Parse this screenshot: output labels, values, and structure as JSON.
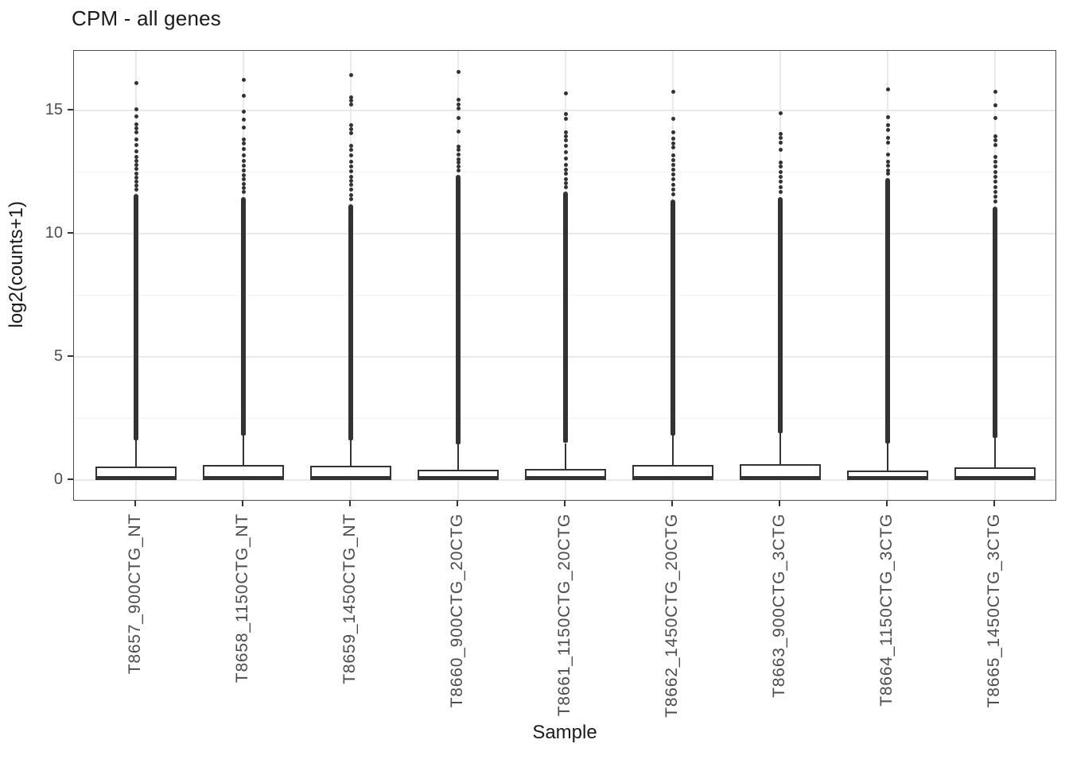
{
  "chart_data": {
    "type": "boxplot",
    "title": "CPM - all genes",
    "xlabel": "Sample",
    "ylabel": "log2(counts+1)",
    "ylim": [
      -0.87,
      17.4
    ],
    "y_major_ticks": [
      0,
      5,
      10,
      15
    ],
    "y_minor_ticks": [
      2.5,
      7.5,
      12.5
    ],
    "grid": "on",
    "legend": "none",
    "colors": {
      "box_border": "#333333",
      "median": "#333333",
      "outlier_dot": "#333333",
      "grid_major": "#e9e9e9",
      "grid_minor": "#f3f3f3",
      "panel_border": "#4d4d4d",
      "tick_label": "#4d4d4d",
      "axis_title": "#1a1a1a",
      "title": "#1a1a1a",
      "background": "#ffffff"
    },
    "samples": [
      {
        "name": "T8657_900CTG_NT",
        "q1": 0,
        "median": 0.07,
        "q3": 0.55,
        "whisker_low": 0,
        "whisker_high": 1.6,
        "dense_outliers_to": 11.6,
        "outlier_dots": [
          11.78,
          11.95,
          12.1,
          12.28,
          12.45,
          12.62,
          12.8,
          12.95,
          13.12,
          13.35,
          13.6,
          13.82,
          14.1,
          14.28,
          14.45,
          14.75,
          15.05,
          16.1
        ]
      },
      {
        "name": "T8658_1150CTG_NT",
        "q1": 0,
        "median": 0.07,
        "q3": 0.6,
        "whisker_low": 0,
        "whisker_high": 1.8,
        "dense_outliers_to": 11.5,
        "outlier_dots": [
          11.68,
          11.85,
          12.02,
          12.2,
          12.38,
          12.55,
          12.75,
          12.95,
          13.18,
          13.42,
          13.65,
          13.82,
          14.3,
          14.62,
          14.95,
          15.6,
          16.25
        ]
      },
      {
        "name": "T8659_1450CTG_NT",
        "q1": 0,
        "median": 0.07,
        "q3": 0.58,
        "whisker_low": 0,
        "whisker_high": 1.6,
        "dense_outliers_to": 11.2,
        "outlier_dots": [
          11.4,
          11.58,
          11.78,
          11.98,
          12.15,
          12.32,
          12.52,
          12.72,
          12.92,
          13.18,
          13.4,
          13.55,
          14.08,
          14.25,
          14.4,
          15.25,
          15.4,
          15.52,
          16.45
        ]
      },
      {
        "name": "T8660_900CTG_20CTG",
        "q1": 0,
        "median": 0.07,
        "q3": 0.42,
        "whisker_low": 0,
        "whisker_high": 1.45,
        "dense_outliers_to": 12.4,
        "outlier_dots": [
          12.55,
          12.72,
          12.88,
          13.02,
          13.2,
          13.4,
          13.52,
          14.15,
          14.7,
          15.08,
          15.25,
          15.42,
          16.55
        ]
      },
      {
        "name": "T8661_1150CTG_20CTG",
        "q1": 0,
        "median": 0.07,
        "q3": 0.45,
        "whisker_low": 0,
        "whisker_high": 1.5,
        "dense_outliers_to": 11.7,
        "outlier_dots": [
          11.88,
          12.05,
          12.22,
          12.42,
          12.6,
          12.8,
          13.05,
          13.3,
          13.58,
          13.78,
          13.95,
          14.1,
          14.65,
          14.87,
          15.7
        ]
      },
      {
        "name": "T8662_1450CTG_20CTG",
        "q1": 0,
        "median": 0.07,
        "q3": 0.62,
        "whisker_low": 0,
        "whisker_high": 1.8,
        "dense_outliers_to": 11.4,
        "outlier_dots": [
          11.6,
          11.8,
          12.0,
          12.2,
          12.4,
          12.6,
          12.8,
          13.0,
          13.18,
          13.5,
          13.65,
          13.85,
          14.1,
          14.67,
          15.75
        ]
      },
      {
        "name": "T8663_900CTG_3CTG",
        "q1": 0,
        "median": 0.07,
        "q3": 0.66,
        "whisker_low": 0,
        "whisker_high": 1.9,
        "dense_outliers_to": 11.5,
        "outlier_dots": [
          11.7,
          11.9,
          12.1,
          12.3,
          12.5,
          12.72,
          12.9,
          13.4,
          13.7,
          13.9,
          14.05,
          14.9
        ]
      },
      {
        "name": "T8664_1150CTG_3CTG",
        "q1": 0,
        "median": 0.07,
        "q3": 0.4,
        "whisker_low": 0,
        "whisker_high": 1.5,
        "dense_outliers_to": 12.25,
        "outlier_dots": [
          12.42,
          12.58,
          12.75,
          12.92,
          13.2,
          13.7,
          13.9,
          14.2,
          14.4,
          14.72,
          15.85
        ]
      },
      {
        "name": "T8665_1450CTG_3CTG",
        "q1": 0,
        "median": 0.07,
        "q3": 0.52,
        "whisker_low": 0,
        "whisker_high": 1.7,
        "dense_outliers_to": 11.1,
        "outlier_dots": [
          11.3,
          11.5,
          11.7,
          11.9,
          12.1,
          12.3,
          12.5,
          12.72,
          12.92,
          13.1,
          13.6,
          13.78,
          13.95,
          14.7,
          15.2,
          15.75
        ]
      }
    ]
  }
}
